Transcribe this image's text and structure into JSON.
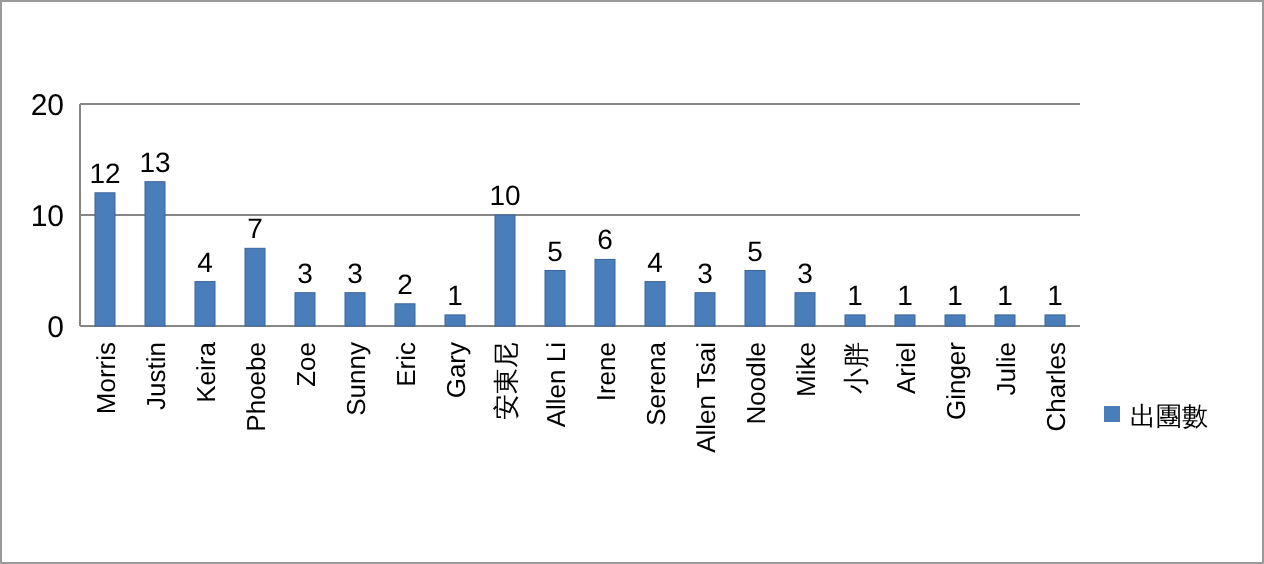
{
  "chart_data": {
    "type": "bar",
    "categories": [
      "Morris",
      "Justin",
      "Keira",
      "Phoebe",
      "Zoe",
      "Sunny",
      "Eric",
      "Gary",
      "安東尼",
      "Allen Li",
      "Irene",
      "Serena",
      "Allen Tsai",
      "Noodle",
      "Mike",
      "小胖",
      "Ariel",
      "Ginger",
      "Julie",
      "Charles"
    ],
    "series": [
      {
        "name": "出團數",
        "color": "#4a7ebb",
        "values": [
          12,
          13,
          4,
          7,
          3,
          3,
          2,
          1,
          10,
          5,
          6,
          4,
          3,
          5,
          3,
          1,
          1,
          1,
          1,
          1
        ]
      }
    ],
    "ylim": [
      0,
      20
    ],
    "yticks": [
      0,
      10,
      20
    ],
    "grid": "y",
    "legend": "right",
    "data_labels": true
  }
}
